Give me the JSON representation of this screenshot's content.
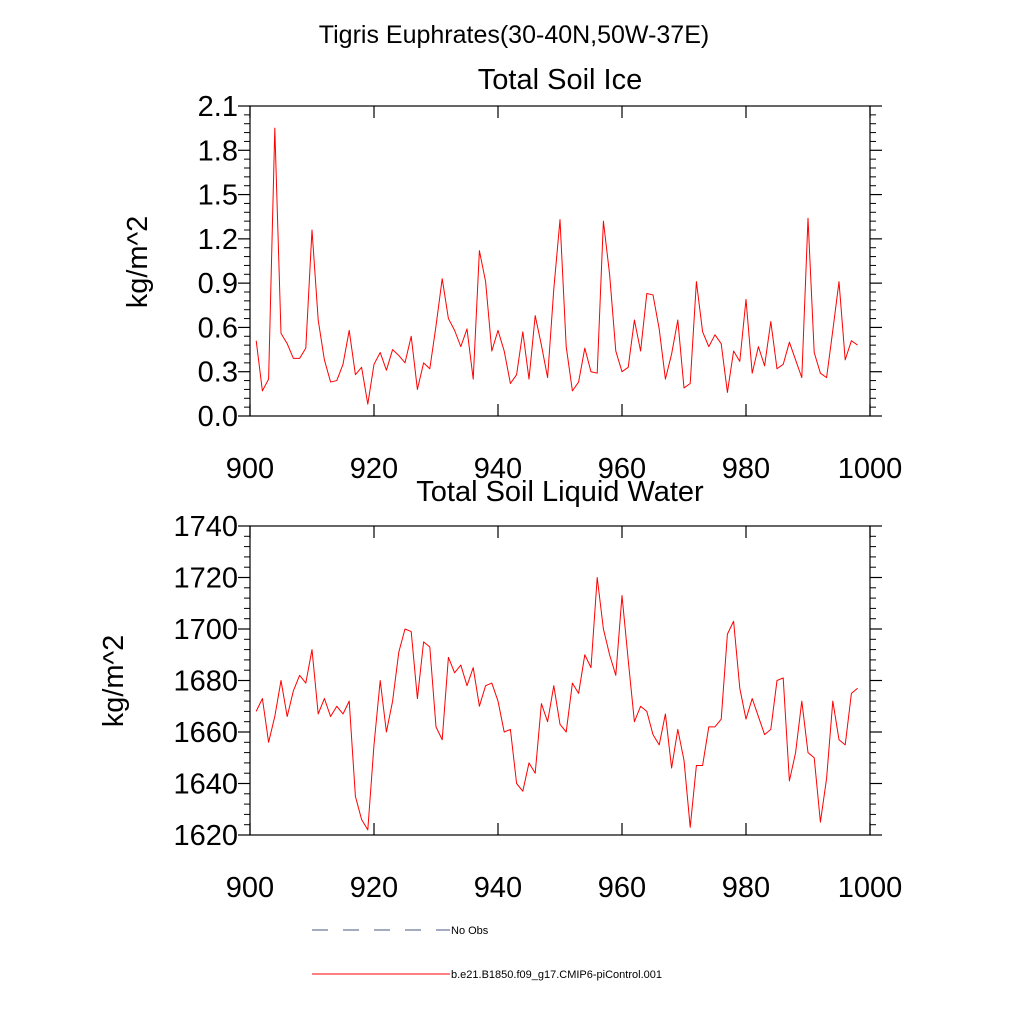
{
  "figure_title": "Tigris Euphrates(30-40N,50W-37E)",
  "colors": {
    "series": "#ff0000",
    "obs": "#4a5580",
    "axis": "#000000"
  },
  "legend": {
    "obs_label": "No Obs",
    "model_label": "b.e21.B1850.f09_g17.CMIP6-piControl.001"
  },
  "chart_data": [
    {
      "type": "line",
      "title": "Total Soil Ice",
      "xlabel": "",
      "ylabel": "kg/m^2",
      "xlim": [
        900,
        1000
      ],
      "ylim": [
        0.0,
        2.1
      ],
      "xticks": [
        900,
        920,
        940,
        960,
        980,
        1000
      ],
      "yticks": [
        0.0,
        0.3,
        0.6,
        0.9,
        1.2,
        1.5,
        1.8,
        2.1
      ],
      "ytick_labels": [
        "0.0",
        "0.3",
        "0.6",
        "0.9",
        "1.2",
        "1.5",
        "1.8",
        "2.1"
      ],
      "series": [
        {
          "name": "b.e21.B1850.f09_g17.CMIP6-piControl.001",
          "x_start": 901,
          "values": [
            0.51,
            0.17,
            0.25,
            1.95,
            0.56,
            0.49,
            0.39,
            0.39,
            0.46,
            1.26,
            0.65,
            0.38,
            0.23,
            0.24,
            0.35,
            0.58,
            0.28,
            0.33,
            0.08,
            0.35,
            0.43,
            0.31,
            0.45,
            0.41,
            0.36,
            0.54,
            0.18,
            0.36,
            0.32,
            0.61,
            0.93,
            0.66,
            0.58,
            0.47,
            0.59,
            0.25,
            1.12,
            0.91,
            0.44,
            0.58,
            0.44,
            0.22,
            0.28,
            0.57,
            0.25,
            0.68,
            0.48,
            0.26,
            0.86,
            1.33,
            0.47,
            0.17,
            0.23,
            0.46,
            0.3,
            0.29,
            1.32,
            0.96,
            0.44,
            0.3,
            0.33,
            0.65,
            0.44,
            0.83,
            0.82,
            0.59,
            0.25,
            0.42,
            0.65,
            0.19,
            0.22,
            0.91,
            0.57,
            0.47,
            0.55,
            0.49,
            0.16,
            0.44,
            0.37,
            0.79,
            0.29,
            0.47,
            0.34,
            0.64,
            0.32,
            0.35,
            0.5,
            0.38,
            0.26,
            1.34,
            0.43,
            0.29,
            0.26,
            0.58,
            0.91,
            0.38,
            0.51,
            0.48
          ]
        }
      ]
    },
    {
      "type": "line",
      "title": "Total Soil Liquid Water",
      "xlabel": "",
      "ylabel": "kg/m^2",
      "xlim": [
        900,
        1000
      ],
      "ylim": [
        1620,
        1740
      ],
      "xticks": [
        900,
        920,
        940,
        960,
        980,
        1000
      ],
      "yticks": [
        1620,
        1640,
        1660,
        1680,
        1700,
        1720,
        1740
      ],
      "ytick_labels": [
        "1620",
        "1640",
        "1660",
        "1680",
        "1700",
        "1720",
        "1740"
      ],
      "series": [
        {
          "name": "b.e21.B1850.f09_g17.CMIP6-piControl.001",
          "x_start": 901,
          "values": [
            1668,
            1673,
            1656,
            1666,
            1680,
            1666,
            1676,
            1682,
            1679,
            1692,
            1667,
            1673,
            1666,
            1670,
            1667,
            1672,
            1635,
            1626,
            1622,
            1655,
            1680,
            1660,
            1672,
            1691,
            1700,
            1699,
            1673,
            1695,
            1693,
            1662,
            1657,
            1689,
            1683,
            1686,
            1678,
            1685,
            1670,
            1678,
            1679,
            1672,
            1660,
            1661,
            1640,
            1637,
            1648,
            1644,
            1671,
            1664,
            1678,
            1663,
            1660,
            1679,
            1675,
            1690,
            1685,
            1720,
            1700,
            1690,
            1682,
            1713,
            1688,
            1664,
            1670,
            1668,
            1659,
            1655,
            1667,
            1646,
            1661,
            1649,
            1623,
            1647,
            1647,
            1662,
            1662,
            1665,
            1698,
            1703,
            1677,
            1665,
            1673,
            1666,
            1659,
            1661,
            1680,
            1681,
            1641,
            1652,
            1672,
            1652,
            1650,
            1625,
            1642,
            1672,
            1657,
            1655,
            1675,
            1677
          ]
        }
      ]
    }
  ]
}
